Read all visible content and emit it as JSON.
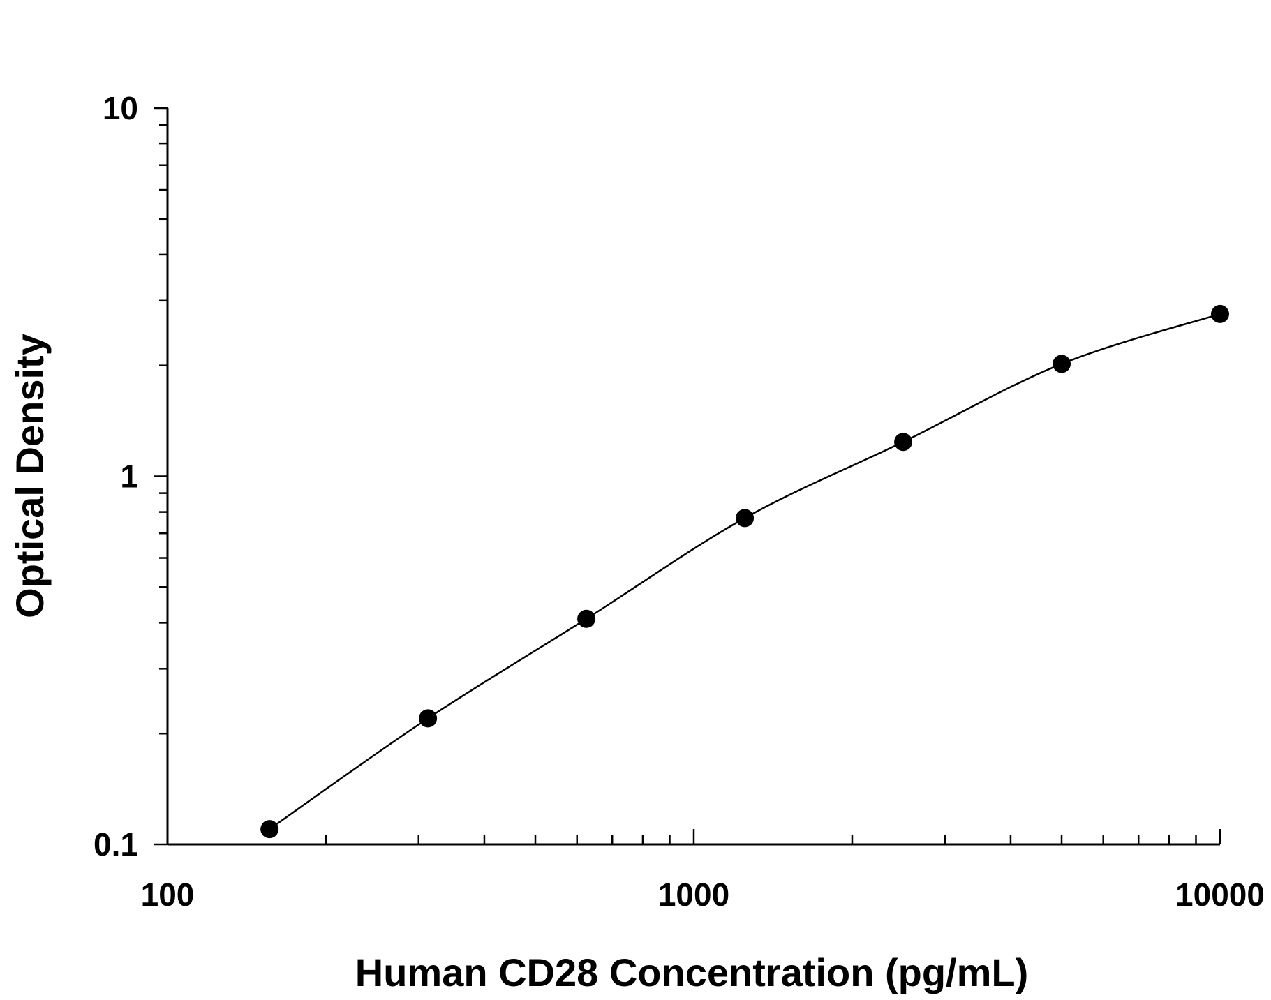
{
  "chart_data": {
    "type": "scatter",
    "xlabel": "Human CD28 Concentration (pg/mL)",
    "ylabel": "Optical Density",
    "x_scale": "log",
    "y_scale": "log",
    "xlim": [
      100,
      10000
    ],
    "ylim": [
      0.1,
      10
    ],
    "x_tick_labels": [
      "100",
      "1000",
      "10000"
    ],
    "y_tick_labels": [
      "0.1",
      "1",
      "10"
    ],
    "grid": false,
    "legend": "none",
    "fit_curve": "smooth line through points",
    "series": [
      {
        "x": [
          156.25,
          312.5,
          625,
          1250,
          2500,
          5000,
          10000
        ],
        "y": [
          0.11,
          0.22,
          0.41,
          0.77,
          1.24,
          2.02,
          2.76
        ]
      }
    ]
  }
}
